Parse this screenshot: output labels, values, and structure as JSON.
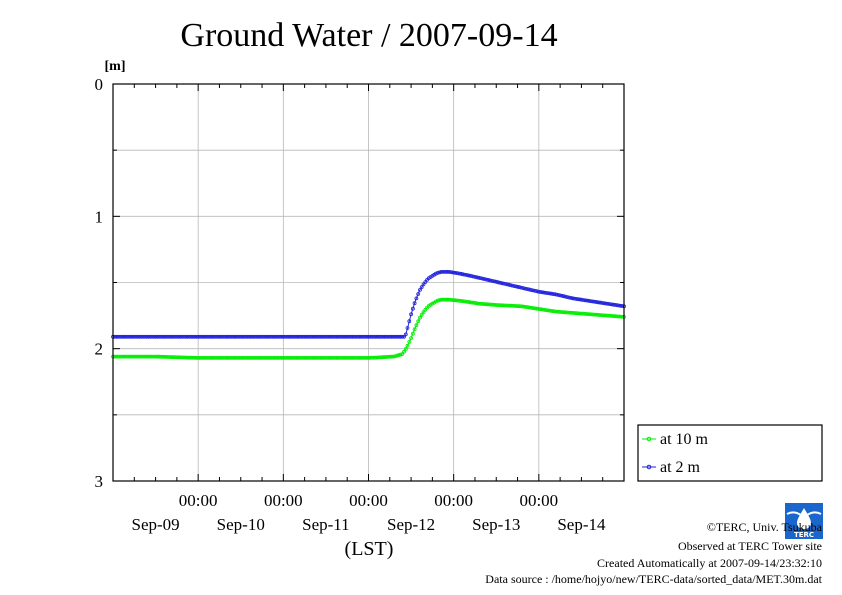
{
  "chart_data": {
    "type": "line",
    "title": "Ground Water / 2007-09-14",
    "ylabel": "[m]",
    "xlabel": "(LST)",
    "ylim": [
      0,
      3
    ],
    "y_inverted": true,
    "y_ticks": [
      "0",
      "1",
      "2",
      "3"
    ],
    "x_tick_times": [
      "00:00",
      "00:00",
      "00:00",
      "00:00",
      "00:00"
    ],
    "x_day_labels": [
      "Sep-09",
      "Sep-10",
      "Sep-11",
      "Sep-12",
      "Sep-13",
      "Sep-14"
    ],
    "x_unit": "days",
    "x_range": [
      0,
      6
    ],
    "grid": true,
    "legend_position": "right",
    "series": [
      {
        "name": "at 10 m",
        "color": "#00ee00",
        "points": [
          [
            0.0,
            2.06
          ],
          [
            0.5,
            2.06
          ],
          [
            1.0,
            2.07
          ],
          [
            1.5,
            2.07
          ],
          [
            2.0,
            2.07
          ],
          [
            2.5,
            2.07
          ],
          [
            3.0,
            2.07
          ],
          [
            3.3,
            2.06
          ],
          [
            3.4,
            2.04
          ],
          [
            3.45,
            1.99
          ],
          [
            3.5,
            1.92
          ],
          [
            3.55,
            1.84
          ],
          [
            3.6,
            1.77
          ],
          [
            3.65,
            1.72
          ],
          [
            3.7,
            1.68
          ],
          [
            3.75,
            1.66
          ],
          [
            3.8,
            1.64
          ],
          [
            3.85,
            1.63
          ],
          [
            3.95,
            1.63
          ],
          [
            4.1,
            1.64
          ],
          [
            4.3,
            1.66
          ],
          [
            4.5,
            1.67
          ],
          [
            4.8,
            1.68
          ],
          [
            5.0,
            1.7
          ],
          [
            5.2,
            1.72
          ],
          [
            5.4,
            1.73
          ],
          [
            5.6,
            1.74
          ],
          [
            5.8,
            1.75
          ],
          [
            6.0,
            1.76
          ]
        ]
      },
      {
        "name": "at 2 m",
        "color": "#2222dd",
        "points": [
          [
            0.0,
            1.91
          ],
          [
            0.5,
            1.91
          ],
          [
            1.0,
            1.91
          ],
          [
            1.5,
            1.91
          ],
          [
            2.0,
            1.91
          ],
          [
            2.5,
            1.91
          ],
          [
            3.0,
            1.91
          ],
          [
            3.43,
            1.91
          ],
          [
            3.46,
            1.84
          ],
          [
            3.5,
            1.74
          ],
          [
            3.55,
            1.64
          ],
          [
            3.6,
            1.56
          ],
          [
            3.65,
            1.51
          ],
          [
            3.7,
            1.47
          ],
          [
            3.75,
            1.45
          ],
          [
            3.8,
            1.43
          ],
          [
            3.85,
            1.42
          ],
          [
            3.9,
            1.42
          ],
          [
            3.95,
            1.42
          ],
          [
            4.05,
            1.43
          ],
          [
            4.2,
            1.45
          ],
          [
            4.4,
            1.48
          ],
          [
            4.6,
            1.51
          ],
          [
            4.8,
            1.54
          ],
          [
            5.0,
            1.57
          ],
          [
            5.2,
            1.59
          ],
          [
            5.4,
            1.62
          ],
          [
            5.6,
            1.64
          ],
          [
            5.8,
            1.66
          ],
          [
            6.0,
            1.68
          ]
        ]
      }
    ]
  },
  "footer": {
    "copyright": "©TERC, Univ. Tsukuba",
    "observed": "Observed at TERC Tower site",
    "created": "Created Automatically at 2007-09-14/23:32:10",
    "source": "Data source : /home/hojyo/new/TERC-data/sorted_data/MET.30m.dat"
  },
  "logo": {
    "text": "TERC"
  }
}
